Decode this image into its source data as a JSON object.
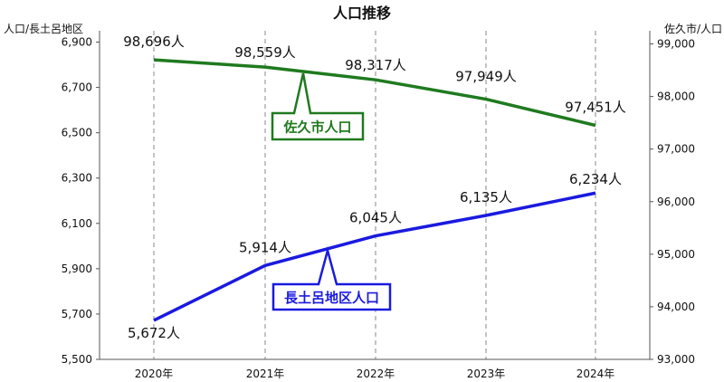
{
  "chart_data": {
    "type": "line",
    "title": "人口推移",
    "categories": [
      "2020年",
      "2021年",
      "2022年",
      "2023年",
      "2024年"
    ],
    "left_axis": {
      "label": "人口/長土呂地区",
      "range": [
        5500,
        6950
      ],
      "ticks": [
        "5,500",
        "5,700",
        "5,900",
        "6,100",
        "6,300",
        "6,500",
        "6,700",
        "6,900"
      ]
    },
    "right_axis": {
      "label": "佐久市/人口",
      "range": [
        93000,
        99250
      ],
      "ticks": [
        "93,000",
        "94,000",
        "95,000",
        "96,000",
        "97,000",
        "98,000",
        "99,000"
      ]
    },
    "series": [
      {
        "name": "佐久市人口",
        "axis": "right",
        "color": "#1f7a1f",
        "values": [
          98696,
          98559,
          98317,
          97949,
          97451
        ],
        "labels": [
          "98,696人",
          "98,559人",
          "98,317人",
          "97,949人",
          "97,451人"
        ]
      },
      {
        "name": "長土呂地区人口",
        "axis": "left",
        "color": "#1a1ae0",
        "values": [
          5672,
          5914,
          6045,
          6135,
          6234
        ],
        "labels": [
          "5,672人",
          "5,914人",
          "6,045人",
          "6,135人",
          "6,234人"
        ]
      }
    ],
    "grid": "vertical dashed"
  }
}
